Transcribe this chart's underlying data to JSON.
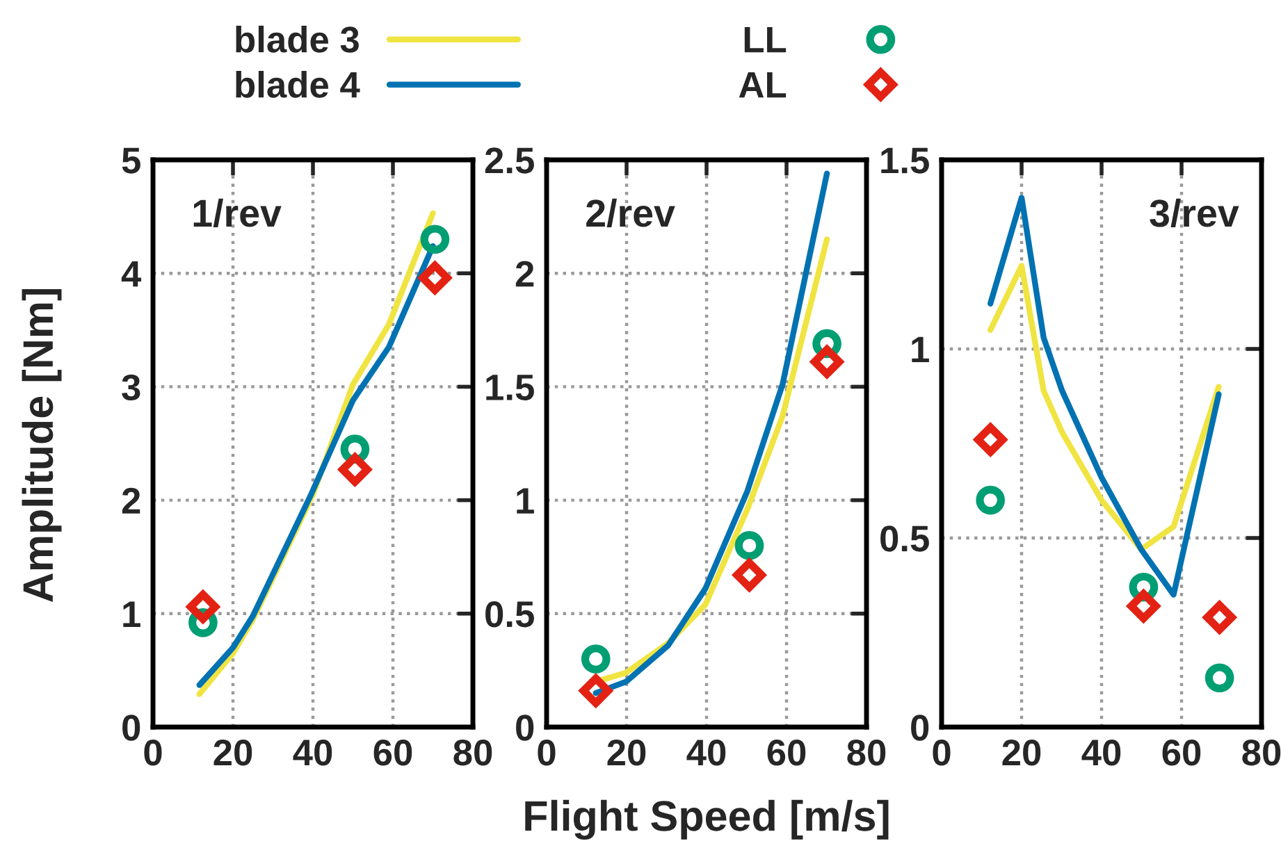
{
  "chart_data": [
    {
      "type": "line",
      "title": "1/rev",
      "ylabel": "Amplitude [Nm]",
      "xlim": [
        0,
        80
      ],
      "xticks": [
        0,
        20,
        40,
        60,
        80
      ],
      "ylim": [
        0,
        5
      ],
      "yticks": [
        0,
        1,
        2,
        3,
        4,
        5
      ],
      "grid": true,
      "legend": "top",
      "series": [
        {
          "name": "blade 3",
          "color": "#f0e442",
          "marker": "none",
          "x": [
            11.6,
            20,
            25,
            40,
            50,
            59,
            70
          ],
          "values": [
            0.29,
            0.65,
            0.95,
            2.05,
            3.02,
            3.55,
            4.53
          ]
        },
        {
          "name": "blade 4",
          "color": "#0072b2",
          "marker": "none",
          "x": [
            11.6,
            20,
            25,
            39.4,
            50,
            59,
            70
          ],
          "values": [
            0.37,
            0.7,
            0.98,
            2.04,
            2.88,
            3.35,
            4.24
          ]
        },
        {
          "name": "LL",
          "color": "#009e73",
          "type": "scatter",
          "marker": "circle",
          "x": [
            12.5,
            50.5,
            70.5
          ],
          "values": [
            0.92,
            2.45,
            4.3
          ]
        },
        {
          "name": "AL",
          "color": "#e32214",
          "type": "scatter",
          "marker": "diamond",
          "x": [
            12.5,
            50.5,
            70.5
          ],
          "values": [
            1.06,
            2.27,
            3.96
          ]
        }
      ]
    },
    {
      "type": "line",
      "title": "2/rev",
      "xlabel": "Flight Speed [m/s]",
      "xlim": [
        0,
        80
      ],
      "xticks": [
        0,
        20,
        40,
        60,
        80
      ],
      "ylim": [
        0,
        2.5
      ],
      "yticks": [
        0,
        0.5,
        1,
        1.5,
        2,
        2.5
      ],
      "grid": true,
      "series": [
        {
          "color": "#f0e442",
          "marker": "none",
          "x": [
            12.3,
            19.9,
            30.4,
            39.7,
            50.2,
            59,
            70.1
          ],
          "values": [
            0.2,
            0.24,
            0.37,
            0.54,
            0.96,
            1.37,
            2.15
          ]
        },
        {
          "color": "#0072b2",
          "marker": "none",
          "x": [
            12.3,
            19.9,
            30.4,
            39.7,
            50.2,
            59,
            70.1
          ],
          "values": [
            0.15,
            0.2,
            0.36,
            0.61,
            1.04,
            1.51,
            2.44
          ]
        },
        {
          "color": "#009e73",
          "type": "scatter",
          "marker": "circle",
          "x": [
            12.3,
            50.7,
            70.1
          ],
          "values": [
            0.3,
            0.8,
            1.69
          ]
        },
        {
          "color": "#e32214",
          "type": "scatter",
          "marker": "diamond",
          "x": [
            12.3,
            50.7,
            70.1
          ],
          "values": [
            0.16,
            0.67,
            1.61
          ]
        }
      ]
    },
    {
      "type": "line",
      "title": "3/rev",
      "xlim": [
        0,
        80
      ],
      "xticks": [
        0,
        20,
        40,
        60,
        80
      ],
      "ylim": [
        0,
        1.5
      ],
      "yticks": [
        0,
        0.5,
        1,
        1.5
      ],
      "grid": true,
      "series": [
        {
          "color": "#f0e442",
          "marker": "none",
          "x": [
            12.2,
            20,
            25.5,
            30.1,
            40,
            49.9,
            58,
            69.3
          ],
          "values": [
            1.05,
            1.22,
            0.89,
            0.78,
            0.6,
            0.47,
            0.53,
            0.9
          ]
        },
        {
          "color": "#0072b2",
          "marker": "none",
          "x": [
            12.2,
            20,
            25.5,
            30.1,
            40,
            49.9,
            58,
            69.3
          ],
          "values": [
            1.12,
            1.4,
            1.03,
            0.89,
            0.66,
            0.47,
            0.35,
            0.88
          ]
        },
        {
          "color": "#009e73",
          "type": "scatter",
          "marker": "circle",
          "x": [
            12.2,
            50.5,
            69.5
          ],
          "values": [
            0.6,
            0.37,
            0.13
          ]
        },
        {
          "color": "#e32214",
          "type": "scatter",
          "marker": "diamond",
          "x": [
            12.2,
            50.5,
            69.5
          ],
          "values": [
            0.76,
            0.32,
            0.29
          ]
        }
      ]
    }
  ]
}
